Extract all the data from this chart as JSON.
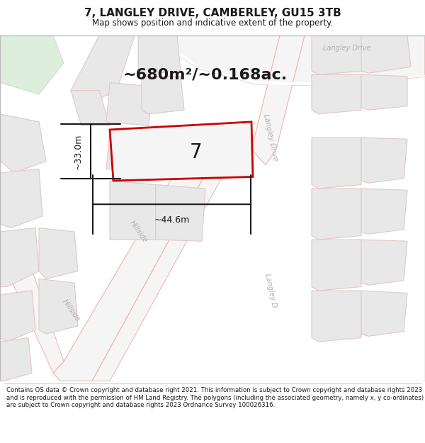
{
  "title": "7, LANGLEY DRIVE, CAMBERLEY, GU15 3TB",
  "subtitle": "Map shows position and indicative extent of the property.",
  "area_text": "~680m²/~0.168ac.",
  "property_number": "7",
  "dim_width": "~44.6m",
  "dim_height": "~33.0m",
  "footer": "Contains OS data © Crown copyright and database right 2021. This information is subject to Crown copyright and database rights 2023 and is reproduced with the permission of HM Land Registry. The polygons (including the associated geometry, namely x, y co-ordinates) are subject to Crown copyright and database rights 2023 Ordnance Survey 100026316.",
  "bg_color": "#ffffff",
  "road_fill": "#f5f5f5",
  "road_edge": "#f0b0b0",
  "block_fill": "#e8e8e8",
  "block_edge": "#e0c8c8",
  "green_fill": "#ddeedd",
  "green_edge": "#c8dcc8",
  "property_fill": "#f5f5f5",
  "property_edge": "#cc0000",
  "dim_color": "#1a1a1a",
  "text_color": "#1a1a1a",
  "road_label_color": "#b0b0b0",
  "title_fontsize": 11,
  "subtitle_fontsize": 8.5,
  "footer_fontsize": 6.2,
  "area_fontsize": 16,
  "number_fontsize": 20,
  "dim_fontsize": 9
}
